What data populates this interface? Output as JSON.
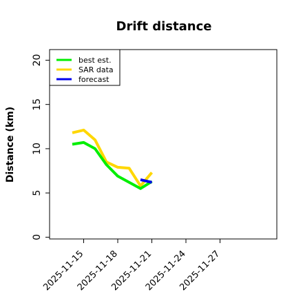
{
  "colors": {
    "best_est": "#00ee00",
    "sar_data": "#ffd700",
    "forecast": "#0000ee",
    "axis": "#000000",
    "background": "#ffffff"
  },
  "chart_data": {
    "type": "line",
    "title": "Drift distance",
    "xlabel": "",
    "ylabel": "Distance (km)",
    "x_ticks": [
      "2025-11-15",
      "2025-11-18",
      "2025-11-21",
      "2025-11-24",
      "2025-11-27"
    ],
    "x_tick_days": [
      0,
      3,
      6,
      9,
      12
    ],
    "xlim": [
      -3,
      17
    ],
    "y_ticks": [
      0,
      5,
      10,
      15,
      20
    ],
    "ylim": [
      -0.2,
      21.2
    ],
    "grid": false,
    "legend_position": "top-left",
    "series": [
      {
        "name": "best est.",
        "color": "#00ee00",
        "x": [
          -1,
          0,
          1,
          2,
          3,
          4,
          5,
          6
        ],
        "y": [
          10.5,
          10.7,
          10.0,
          8.2,
          6.9,
          6.2,
          5.5,
          6.3
        ]
      },
      {
        "name": "SAR data",
        "color": "#ffd700",
        "x": [
          -1,
          0,
          1,
          2,
          3,
          4,
          5,
          6
        ],
        "y": [
          11.8,
          12.1,
          11.0,
          8.5,
          7.9,
          7.8,
          5.8,
          7.3
        ]
      },
      {
        "name": "forecast",
        "color": "#0000ee",
        "x": [
          5,
          6
        ],
        "y": [
          6.5,
          6.2
        ]
      }
    ]
  }
}
